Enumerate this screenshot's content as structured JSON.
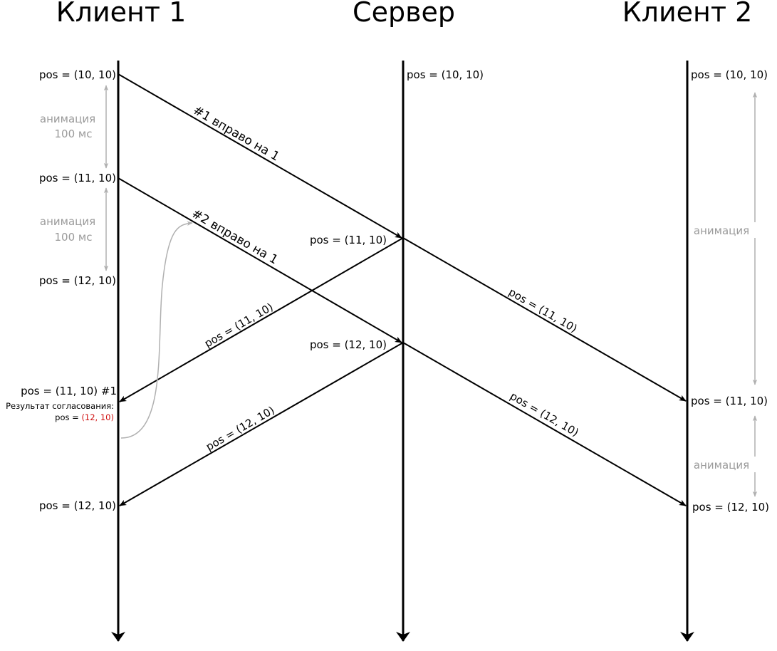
{
  "columns": {
    "client1": "Клиент 1",
    "server": "Сервер",
    "client2": "Клиент 2"
  },
  "client1": {
    "pos_initial": "pos = (10, 10)",
    "pos_after_first": "pos = (11, 10)",
    "pos_after_second": "pos = (12, 10)",
    "ack_label": "pos = (11, 10) #1",
    "reconcile_title": "Результат согласования:",
    "reconcile_prefix": "pos = ",
    "reconcile_value": "(12, 10)",
    "pos_final": "pos = (12, 10)",
    "anim1_line1": "анимация",
    "anim1_line2": "100 мс",
    "anim2_line1": "анимация",
    "anim2_line2": "100 мс"
  },
  "server": {
    "pos_initial": "pos = (10, 10)",
    "pos_after_first": "pos = (11, 10)",
    "pos_after_second": "pos = (12, 10)"
  },
  "client2": {
    "pos_initial": "pos = (10, 10)",
    "anim1": "анимация",
    "pos_first": "pos = (11, 10)",
    "anim2": "анимация",
    "pos_second": "pos = (12, 10)"
  },
  "messages": {
    "cmd1": "#1 вправо на 1",
    "cmd2": "#2 вправо на 1",
    "to_client1_first": "pos = (11, 10)",
    "to_client1_second": "pos = (12, 10)",
    "to_client2_first": "pos = (11, 10)",
    "to_client2_second": "pos = (12, 10)"
  },
  "colors": {
    "line": "#000000",
    "annotation": "#9a9a9a",
    "highlight": "#d01010"
  }
}
